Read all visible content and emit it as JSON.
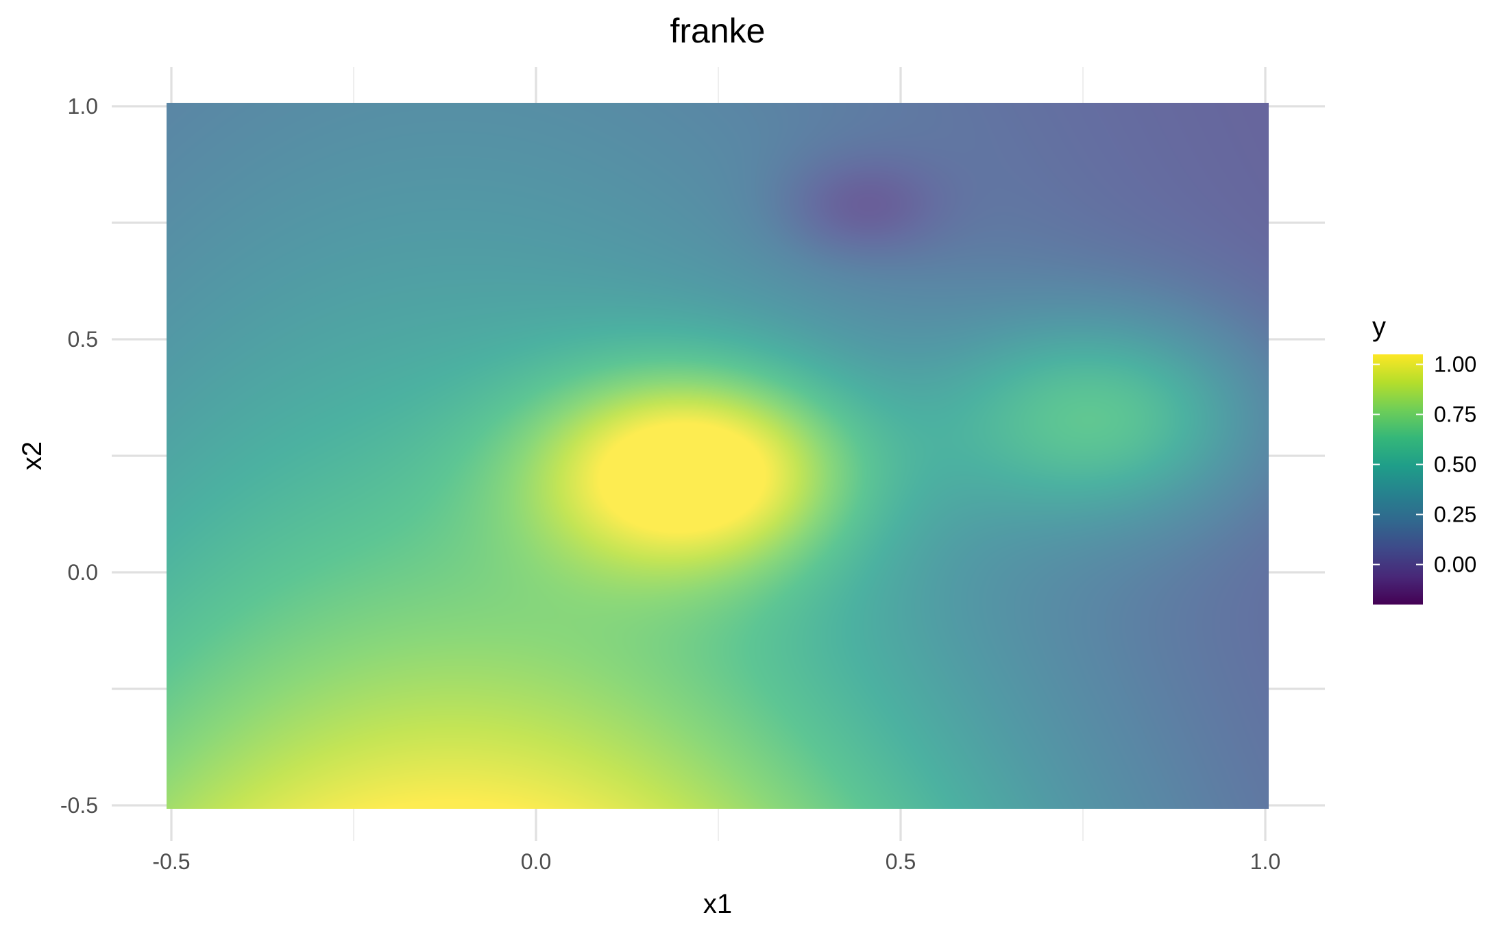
{
  "chart_data": {
    "type": "heatmap",
    "title": "franke",
    "xlabel": "x1",
    "ylabel": "x2",
    "xlim": [
      -0.5,
      1.0
    ],
    "ylim": [
      -0.5,
      1.0
    ],
    "x_ticks": [
      -0.5,
      0.0,
      0.5,
      1.0
    ],
    "y_ticks": [
      -0.5,
      0.0,
      0.5,
      1.0
    ],
    "x_tick_labels": [
      "-0.5",
      "0.0",
      "0.5",
      "1.0"
    ],
    "y_tick_labels": [
      "-0.5",
      "0.0",
      "0.5",
      "1.0"
    ],
    "grid": true,
    "function": "Franke function on [-0.5, 1.0] x [-0.5, 1.0]",
    "z_range": [
      -0.2,
      1.05
    ],
    "fill_alpha": 0.8,
    "legend": {
      "title": "y",
      "position": "right",
      "breaks": [
        1.0,
        0.75,
        0.5,
        0.25,
        0.0
      ],
      "labels": [
        "1.00",
        "0.75",
        "0.50",
        "0.25",
        "0.00"
      ]
    },
    "colormap": "viridis",
    "colormap_stops": [
      "#440154",
      "#482878",
      "#3e4989",
      "#31688e",
      "#26828e",
      "#1f9e89",
      "#35b779",
      "#6ece58",
      "#b5de2b",
      "#fde725"
    ]
  }
}
